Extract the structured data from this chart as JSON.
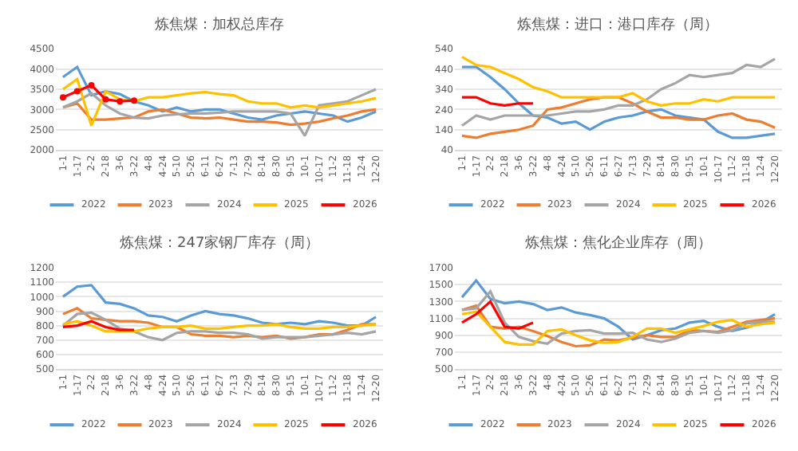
{
  "chart_data": [
    {
      "type": "line",
      "title": "炼焦煤：加权总库存",
      "categories": [
        "1-1",
        "1-17",
        "2-2",
        "2-18",
        "3-6",
        "3-22",
        "4-8",
        "4-24",
        "5-10",
        "5-26",
        "6-11",
        "6-27",
        "7-13",
        "7-29",
        "8-14",
        "8-30",
        "9-15",
        "10-1",
        "10-17",
        "11-2",
        "11-18",
        "12-4",
        "12-20"
      ],
      "ylim": [
        2000,
        4500
      ],
      "yticks": [
        2000,
        2500,
        3000,
        3500,
        4000,
        4500
      ],
      "grid": "y",
      "legend": "bottom",
      "series": [
        {
          "name": "2022",
          "color": "#5b9bd5",
          "values": [
            3800,
            4050,
            3350,
            3450,
            3380,
            3200,
            3100,
            2950,
            3050,
            2950,
            3000,
            3000,
            2900,
            2800,
            2750,
            2850,
            2900,
            2950,
            2900,
            2850,
            2700,
            2800,
            2950
          ]
        },
        {
          "name": "2023",
          "color": "#ed7d31",
          "values": [
            3050,
            3150,
            2750,
            2750,
            2780,
            2800,
            2950,
            3000,
            2900,
            2800,
            2780,
            2800,
            2750,
            2700,
            2700,
            2680,
            2620,
            2650,
            2700,
            2780,
            2850,
            2950,
            3000
          ]
        },
        {
          "name": "2024",
          "color": "#a5a5a5",
          "values": [
            3050,
            3200,
            3400,
            3100,
            2900,
            2800,
            2780,
            2850,
            2880,
            2900,
            2900,
            2920,
            2950,
            2950,
            2950,
            2950,
            2900,
            2350,
            3100,
            3150,
            3200,
            3350,
            3500
          ]
        },
        {
          "name": "2025",
          "color": "#ffc000",
          "values": [
            3500,
            3750,
            2600,
            3450,
            3250,
            3200,
            3300,
            3300,
            3350,
            3400,
            3430,
            3380,
            3350,
            3200,
            3150,
            3150,
            3050,
            3100,
            3050,
            3100,
            3150,
            3200,
            3280
          ]
        },
        {
          "name": "2026",
          "color": "#ff0000",
          "marker": "circle",
          "values": [
            3300,
            3450,
            3600,
            3250,
            3200,
            3220,
            null,
            null,
            null,
            null,
            null,
            null,
            null,
            null,
            null,
            null,
            null,
            null,
            null,
            null,
            null,
            null,
            null
          ]
        }
      ]
    },
    {
      "type": "line",
      "title": "炼焦煤：进口：港口库存（周）",
      "categories": [
        "1-1",
        "1-17",
        "2-2",
        "2-18",
        "3-6",
        "3-22",
        "4-8",
        "4-24",
        "5-10",
        "5-26",
        "6-11",
        "6-27",
        "7-13",
        "7-29",
        "8-14",
        "8-30",
        "9-15",
        "10-1",
        "10-17",
        "11-2",
        "11-18",
        "12-4",
        "12-20"
      ],
      "ylim": [
        40,
        540
      ],
      "yticks": [
        40,
        140,
        240,
        340,
        440,
        540
      ],
      "grid": "y",
      "legend": "bottom",
      "series": [
        {
          "name": "2022",
          "color": "#5b9bd5",
          "values": [
            450,
            450,
            400,
            340,
            270,
            210,
            200,
            170,
            180,
            140,
            180,
            200,
            210,
            230,
            240,
            210,
            200,
            190,
            130,
            100,
            100,
            110,
            120
          ]
        },
        {
          "name": "2023",
          "color": "#ed7d31",
          "values": [
            110,
            100,
            120,
            130,
            140,
            160,
            240,
            250,
            270,
            290,
            300,
            300,
            270,
            230,
            200,
            200,
            190,
            190,
            210,
            220,
            190,
            180,
            150
          ]
        },
        {
          "name": "2024",
          "color": "#a5a5a5",
          "values": [
            160,
            210,
            190,
            210,
            210,
            210,
            210,
            220,
            230,
            230,
            240,
            260,
            260,
            290,
            340,
            370,
            410,
            400,
            410,
            420,
            460,
            450,
            490
          ]
        },
        {
          "name": "2025",
          "color": "#ffc000",
          "values": [
            500,
            460,
            450,
            420,
            390,
            350,
            330,
            300,
            300,
            300,
            300,
            300,
            320,
            280,
            260,
            270,
            270,
            290,
            280,
            300,
            300,
            300,
            300
          ]
        },
        {
          "name": "2026",
          "color": "#ff0000",
          "values": [
            300,
            300,
            270,
            260,
            270,
            270,
            null,
            null,
            null,
            null,
            null,
            null,
            null,
            null,
            null,
            null,
            null,
            null,
            null,
            null,
            null,
            null,
            null
          ]
        }
      ]
    },
    {
      "type": "line",
      "title": "炼焦煤：247家钢厂库存（周）",
      "categories": [
        "1-1",
        "1-17",
        "2-2",
        "2-18",
        "3-6",
        "3-22",
        "4-8",
        "4-24",
        "5-10",
        "5-26",
        "6-11",
        "6-27",
        "7-13",
        "7-29",
        "8-14",
        "8-30",
        "9-15",
        "10-1",
        "10-17",
        "11-2",
        "11-18",
        "12-4",
        "12-20"
      ],
      "ylim": [
        500,
        1200
      ],
      "yticks": [
        500,
        600,
        700,
        800,
        900,
        1000,
        1100,
        1200
      ],
      "grid": "y",
      "legend": "bottom",
      "series": [
        {
          "name": "2022",
          "color": "#5b9bd5",
          "values": [
            1000,
            1070,
            1080,
            960,
            950,
            920,
            870,
            860,
            830,
            870,
            900,
            880,
            870,
            850,
            820,
            810,
            820,
            810,
            830,
            820,
            800,
            800,
            860
          ]
        },
        {
          "name": "2023",
          "color": "#ed7d31",
          "values": [
            880,
            920,
            850,
            840,
            830,
            830,
            820,
            790,
            790,
            740,
            730,
            730,
            720,
            730,
            720,
            730,
            710,
            720,
            740,
            740,
            770,
            810,
            810
          ]
        },
        {
          "name": "2024",
          "color": "#a5a5a5",
          "values": [
            800,
            880,
            890,
            840,
            780,
            760,
            720,
            700,
            750,
            760,
            760,
            750,
            750,
            740,
            710,
            720,
            720,
            720,
            730,
            740,
            750,
            740,
            760
          ]
        },
        {
          "name": "2025",
          "color": "#ffc000",
          "values": [
            810,
            830,
            800,
            760,
            760,
            760,
            780,
            790,
            790,
            800,
            780,
            780,
            790,
            800,
            800,
            810,
            790,
            780,
            780,
            790,
            790,
            800,
            810
          ]
        },
        {
          "name": "2026",
          "color": "#ff0000",
          "values": [
            790,
            800,
            830,
            790,
            770,
            770,
            null,
            null,
            null,
            null,
            null,
            null,
            null,
            null,
            null,
            null,
            null,
            null,
            null,
            null,
            null,
            null,
            null
          ]
        }
      ]
    },
    {
      "type": "line",
      "title": "炼焦煤：焦化企业库存（周）",
      "categories": [
        "1-1",
        "1-17",
        "2-2",
        "2-18",
        "3-6",
        "3-22",
        "4-8",
        "4-24",
        "5-10",
        "5-26",
        "6-11",
        "6-27",
        "7-13",
        "7-29",
        "8-14",
        "8-30",
        "9-15",
        "10-1",
        "10-17",
        "11-2",
        "11-18",
        "12-4",
        "12-20"
      ],
      "ylim": [
        500,
        1700
      ],
      "yticks": [
        500,
        700,
        900,
        1100,
        1300,
        1500,
        1700
      ],
      "grid": "y",
      "legend": "bottom",
      "series": [
        {
          "name": "2022",
          "color": "#5b9bd5",
          "values": [
            1350,
            1550,
            1330,
            1280,
            1300,
            1270,
            1200,
            1230,
            1170,
            1140,
            1100,
            1000,
            850,
            900,
            960,
            980,
            1050,
            1070,
            1000,
            950,
            990,
            1050,
            1150
          ]
        },
        {
          "name": "2023",
          "color": "#ed7d31",
          "values": [
            1200,
            1250,
            1000,
            980,
            1000,
            950,
            890,
            820,
            770,
            780,
            850,
            840,
            870,
            900,
            880,
            880,
            960,
            950,
            940,
            1000,
            1060,
            1080,
            1100
          ]
        },
        {
          "name": "2024",
          "color": "#a5a5a5",
          "values": [
            1200,
            1220,
            1420,
            1050,
            880,
            830,
            800,
            920,
            950,
            960,
            920,
            920,
            930,
            850,
            820,
            860,
            930,
            950,
            930,
            960,
            1040,
            1060,
            1060
          ]
        },
        {
          "name": "2025",
          "color": "#ffc000",
          "values": [
            1150,
            1180,
            1000,
            820,
            790,
            790,
            950,
            970,
            900,
            840,
            810,
            820,
            880,
            980,
            980,
            930,
            970,
            1010,
            1060,
            1080,
            1000,
            1030,
            1050
          ]
        },
        {
          "name": "2026",
          "color": "#ff0000",
          "values": [
            1050,
            1150,
            1300,
            1000,
            980,
            1050,
            null,
            null,
            null,
            null,
            null,
            null,
            null,
            null,
            null,
            null,
            null,
            null,
            null,
            null,
            null,
            null,
            null
          ]
        }
      ]
    }
  ]
}
